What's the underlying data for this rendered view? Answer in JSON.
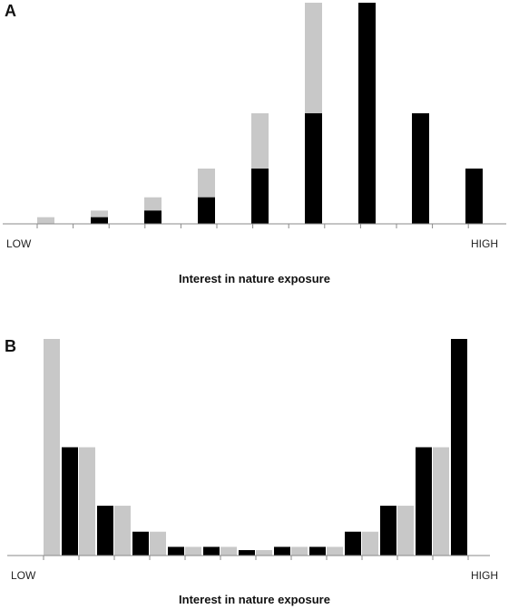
{
  "chart_data": [
    {
      "type": "bar",
      "panel": "A",
      "xlabel": "Interest in nature exposure",
      "x_low_label": "LOW",
      "x_high_label": "HIGH",
      "ylabel": "",
      "ylim": [
        0,
        1
      ],
      "grid": false,
      "legend": "none",
      "series": [
        {
          "color": "#c8c8c8",
          "values": [
            0.03,
            0.06,
            0.12,
            0.25,
            0.5,
            1.0,
            0.5,
            0.25,
            0.12,
            0.06,
            0.03
          ]
        },
        {
          "color": "#000000",
          "values": [
            0.03,
            0.06,
            0.12,
            0.25,
            0.5,
            1.0,
            0.5,
            0.25,
            0.12,
            0.06,
            0.03
          ]
        }
      ]
    },
    {
      "type": "bar",
      "panel": "B",
      "xlabel": "Interest in nature exposure",
      "x_low_label": "LOW",
      "x_high_label": "HIGH",
      "ylabel": "",
      "ylim": [
        0,
        1
      ],
      "grid": false,
      "legend": "none",
      "series": [
        {
          "color": "#c8c8c8",
          "values": [
            1.0,
            0.5,
            0.23,
            0.11,
            0.04,
            0.04,
            0.025,
            0.04,
            0.04,
            0.11,
            0.23,
            0.5
          ]
        },
        {
          "color": "#000000",
          "values": [
            0.5,
            0.23,
            0.11,
            0.04,
            0.04,
            0.025,
            0.04,
            0.04,
            0.11,
            0.23,
            0.5,
            1.0
          ]
        }
      ]
    }
  ]
}
